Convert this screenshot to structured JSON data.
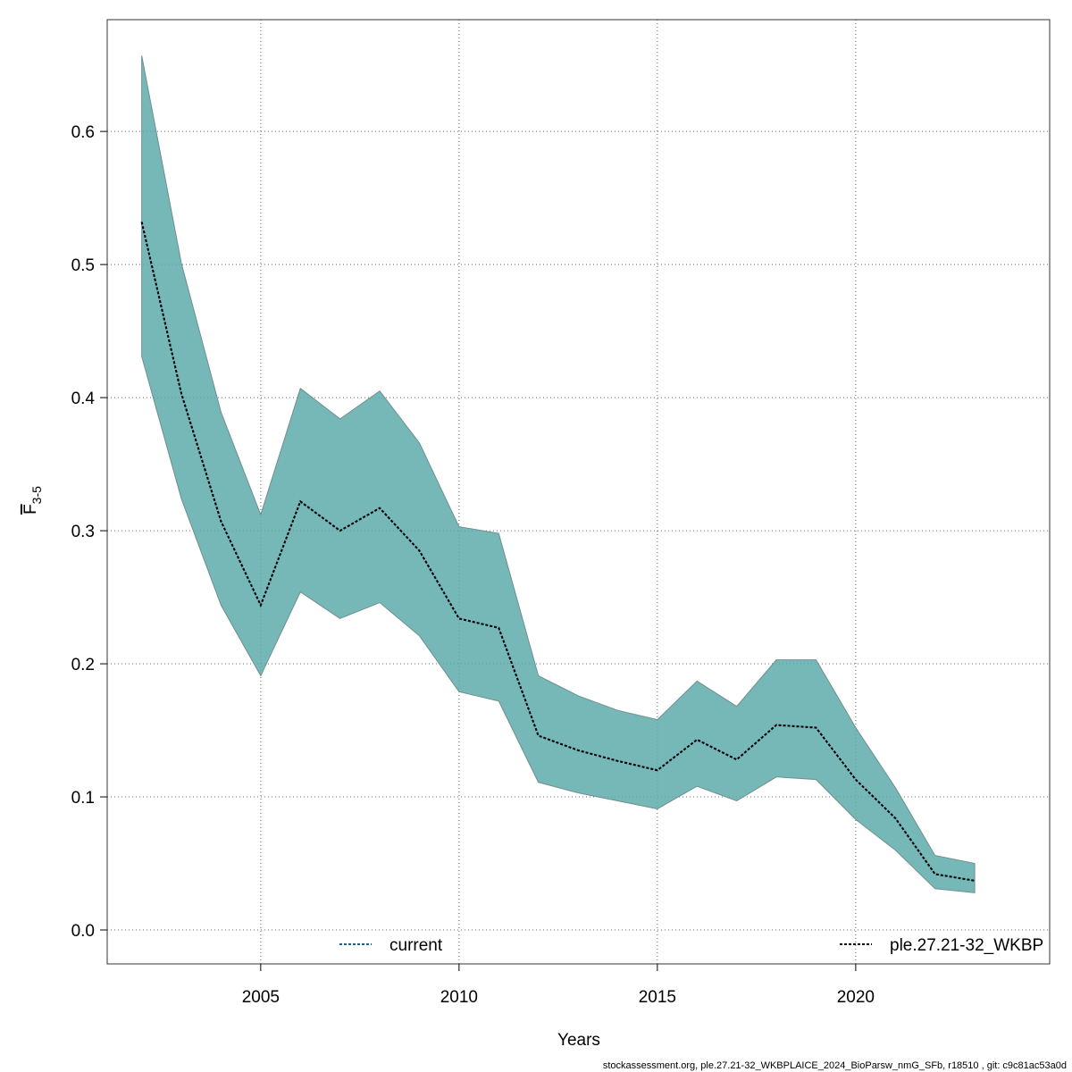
{
  "chart_data": {
    "type": "line",
    "xlabel": "Years",
    "ylabel": {
      "text": "F",
      "subscript": "3-5"
    },
    "footer": "stockassessment.org, ple.27.21-32_WKBPLAICE_2024_BioParsw_nmG_SFb, r18510 , git: c9c81ac53a0d",
    "x": [
      2002,
      2003,
      2004,
      2005,
      2006,
      2007,
      2008,
      2009,
      2010,
      2011,
      2012,
      2013,
      2014,
      2015,
      2016,
      2017,
      2018,
      2019,
      2020,
      2021,
      2022,
      2023
    ],
    "series": [
      {
        "name": "current",
        "color": "#1f5f8b",
        "band_color": "#5eaaab",
        "values": [
          0.532,
          0.403,
          0.307,
          0.244,
          0.322,
          0.3,
          0.317,
          0.285,
          0.234,
          0.227,
          0.146,
          0.135,
          0.127,
          0.12,
          0.143,
          0.128,
          0.154,
          0.152,
          0.113,
          0.084,
          0.042,
          0.037
        ],
        "upper": [
          0.657,
          0.501,
          0.389,
          0.312,
          0.407,
          0.384,
          0.405,
          0.366,
          0.303,
          0.298,
          0.191,
          0.176,
          0.165,
          0.158,
          0.187,
          0.168,
          0.203,
          0.203,
          0.152,
          0.107,
          0.056,
          0.05
        ],
        "lower": [
          0.431,
          0.324,
          0.244,
          0.191,
          0.254,
          0.234,
          0.246,
          0.221,
          0.179,
          0.172,
          0.111,
          0.103,
          0.097,
          0.091,
          0.108,
          0.097,
          0.115,
          0.113,
          0.083,
          0.06,
          0.031,
          0.028
        ]
      },
      {
        "name": "ple.27.21-32_WKBP",
        "color": "#000000",
        "values": [
          0.532,
          0.403,
          0.307,
          0.244,
          0.322,
          0.3,
          0.317,
          0.285,
          0.234,
          0.227,
          0.146,
          0.135,
          0.127,
          0.12,
          0.143,
          0.128,
          0.154,
          0.152,
          0.113,
          0.084,
          0.042,
          0.037
        ]
      }
    ],
    "xlim": [
      2001.13,
      2024.89
    ],
    "xticks": [
      2005,
      2010,
      2015,
      2020
    ],
    "ylim": [
      -0.0255,
      0.684
    ],
    "yticks": [
      {
        "value": 0,
        "label": "0.0"
      },
      0.1,
      0.2,
      0.3,
      0.4,
      0.5,
      0.6
    ],
    "grid": true,
    "legend": "bottom"
  }
}
